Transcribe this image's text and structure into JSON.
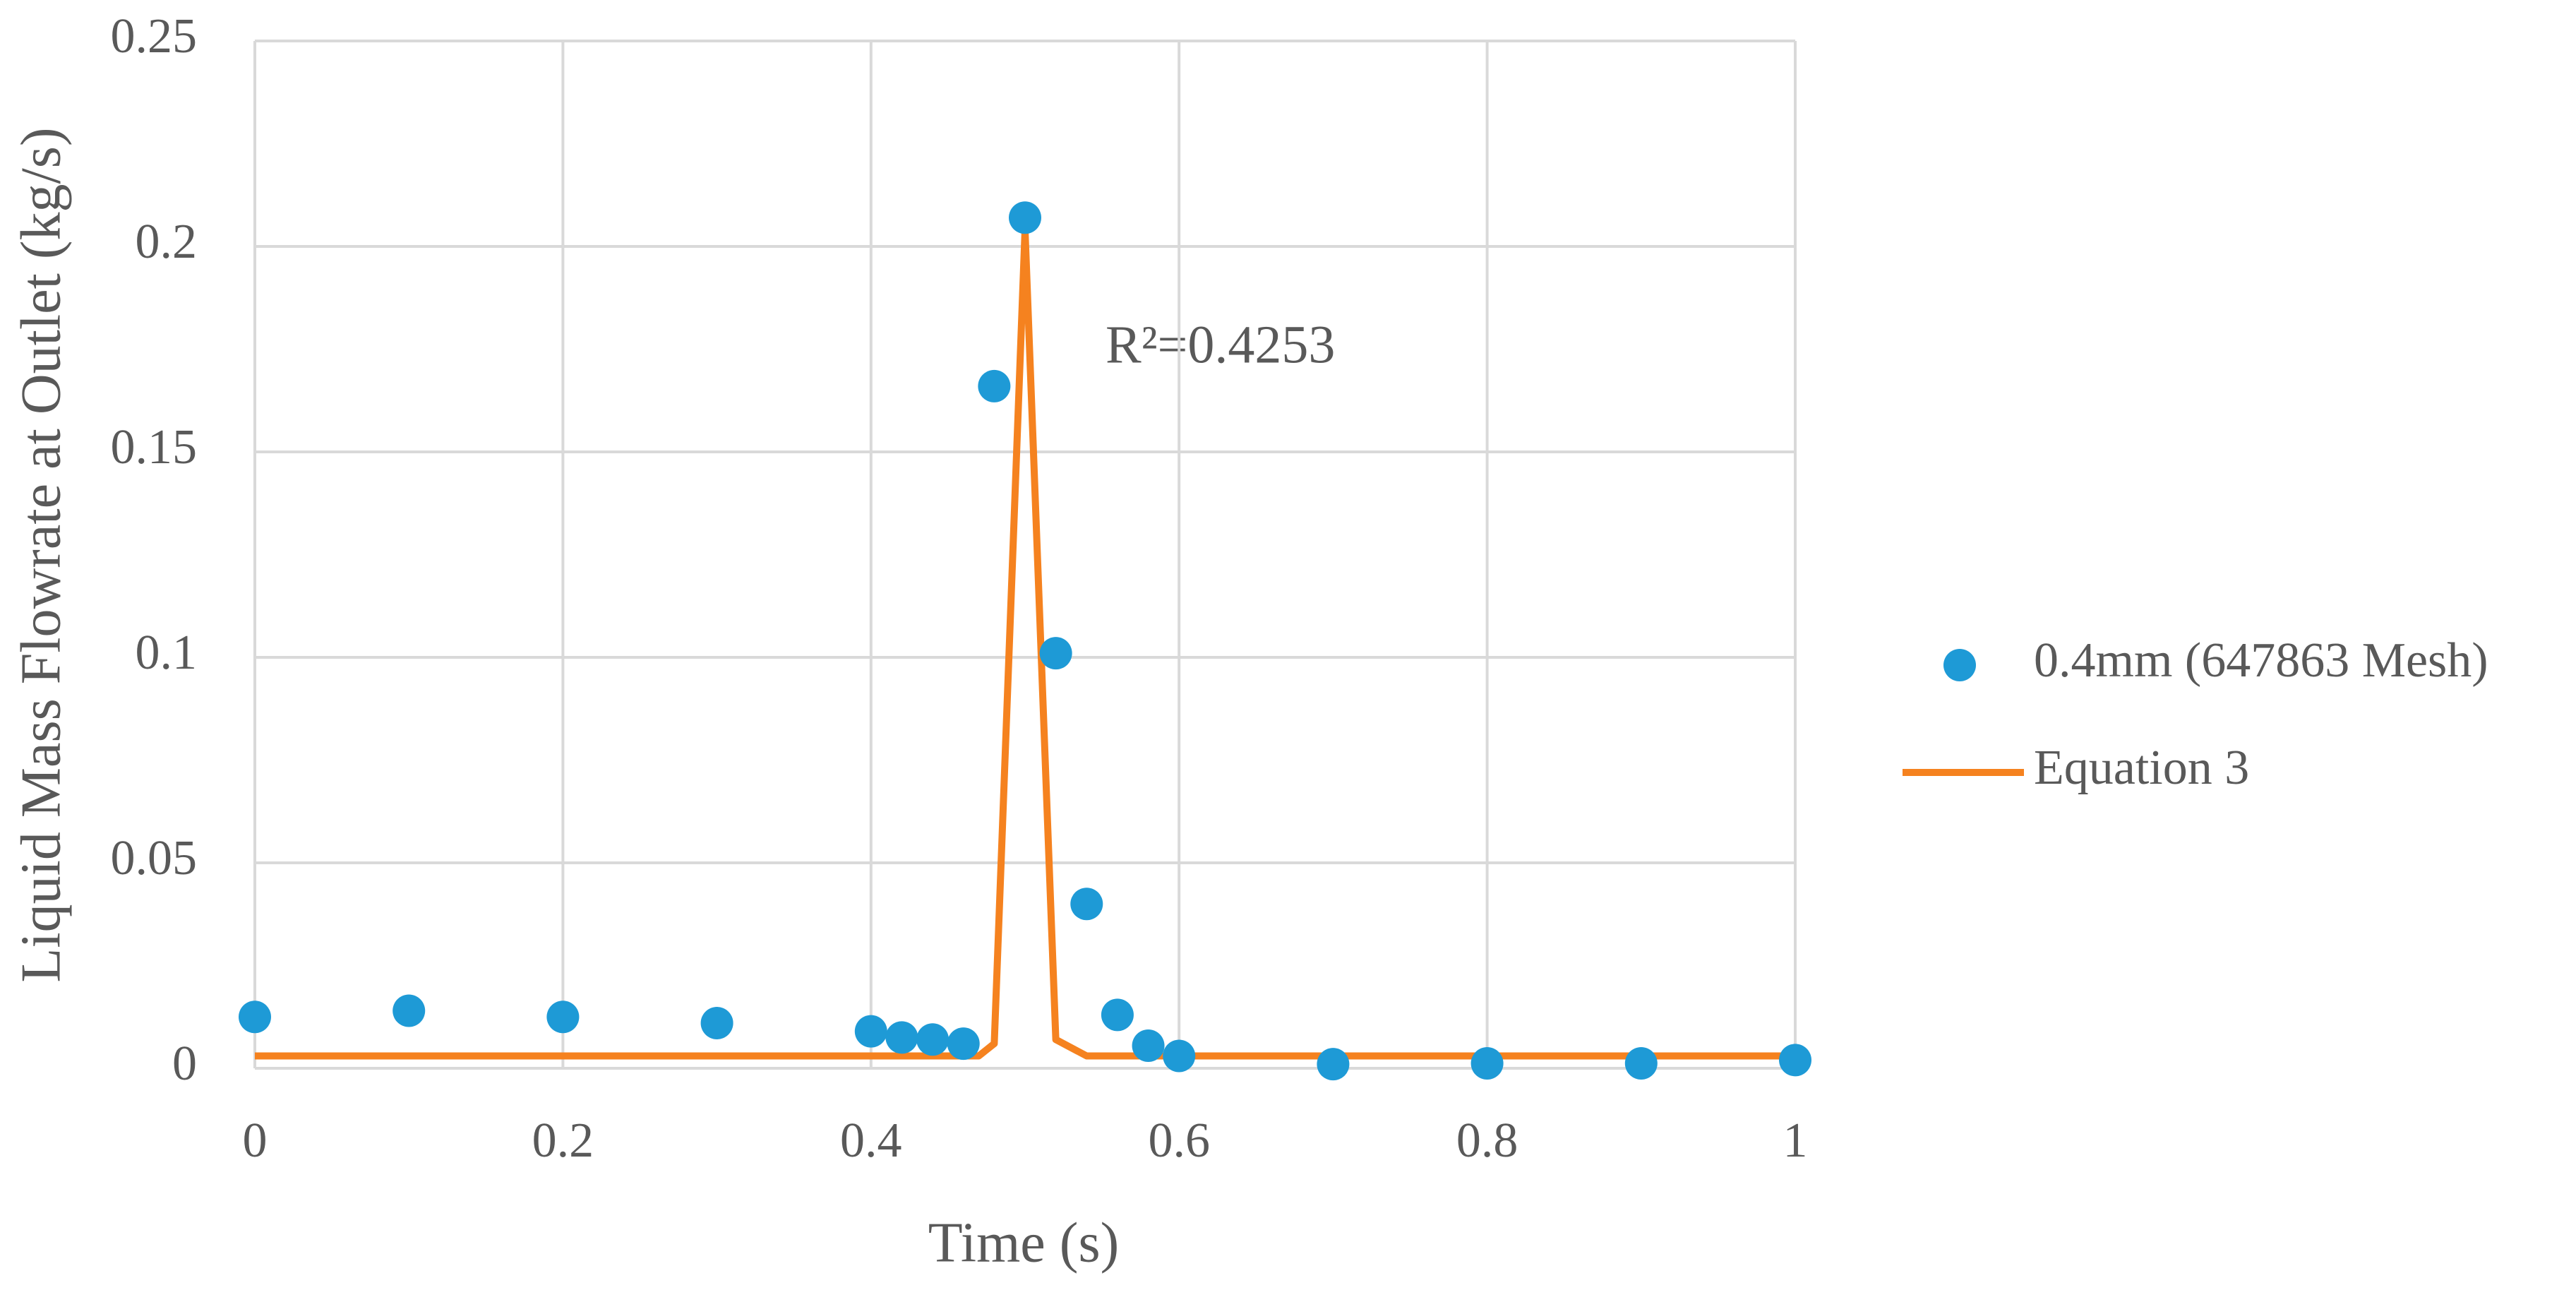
{
  "chart_data": {
    "type": "scatter",
    "x_label": "Time (s)",
    "y_label": "Liquid Mass Flowrate at Outlet (kg/s)",
    "annotation": "R²=0.4253",
    "xlim": [
      0,
      1
    ],
    "xticks": [
      0,
      0.2,
      0.4,
      0.6,
      0.8,
      1
    ],
    "ylim": [
      0,
      0.25
    ],
    "yticks": [
      0,
      0.05,
      0.1,
      0.15,
      0.2,
      0.25
    ],
    "grid": true,
    "legend": "right",
    "series": [
      {
        "name": "0.4mm (647863 Mesh)",
        "type": "scatter",
        "color": "#1e9ad6",
        "x": [
          0,
          0.1,
          0.2,
          0.3,
          0.4,
          0.42,
          0.44,
          0.46,
          0.48,
          0.5,
          0.52,
          0.54,
          0.56,
          0.58,
          0.6,
          0.7,
          0.8,
          0.9,
          1
        ],
        "values": [
          0.0125,
          0.014,
          0.0125,
          0.011,
          0.009,
          0.0075,
          0.007,
          0.006,
          0.166,
          0.207,
          0.101,
          0.04,
          0.013,
          0.0055,
          0.003,
          0.001,
          0.0012,
          0.0012,
          0.002
        ]
      },
      {
        "name": "Equation 3",
        "type": "line",
        "color": "#f5821f",
        "x": [
          0,
          0.47,
          0.48,
          0.5,
          0.52,
          0.54,
          1
        ],
        "values": [
          0.003,
          0.003,
          0.006,
          0.204,
          0.007,
          0.003,
          0.003
        ]
      }
    ]
  }
}
